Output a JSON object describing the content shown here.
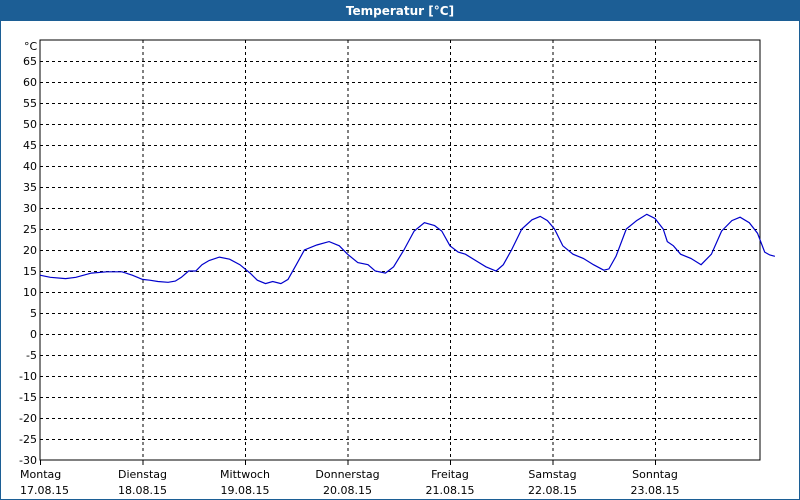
{
  "chart_data": {
    "type": "line",
    "title": "Temperatur [°C]",
    "ylabel": "°C",
    "ylim": [
      -30,
      70
    ],
    "yticks": [
      65,
      60,
      55,
      50,
      45,
      40,
      35,
      30,
      25,
      20,
      15,
      10,
      5,
      0,
      -5,
      -10,
      -15,
      -20,
      -25,
      -30
    ],
    "grid": true,
    "xlim_days": 7,
    "categories": [
      {
        "day": "Montag",
        "date": "17.08.15"
      },
      {
        "day": "Dienstag",
        "date": "18.08.15"
      },
      {
        "day": "Mittwoch",
        "date": "19.08.15"
      },
      {
        "day": "Donnerstag",
        "date": "20.08.15"
      },
      {
        "day": "Freitag",
        "date": "21.08.15"
      },
      {
        "day": "Samstag",
        "date": "22.08.15"
      },
      {
        "day": "Sonntag",
        "date": "23.08.15"
      }
    ],
    "series": [
      {
        "color": "#0000cc",
        "points": [
          [
            0.0,
            14.0
          ],
          [
            0.1,
            13.5
          ],
          [
            0.25,
            13.2
          ],
          [
            0.35,
            13.5
          ],
          [
            0.5,
            14.5
          ],
          [
            0.65,
            14.8
          ],
          [
            0.8,
            14.8
          ],
          [
            0.9,
            14.0
          ],
          [
            1.0,
            13.0
          ],
          [
            1.07,
            12.8
          ],
          [
            1.15,
            12.5
          ],
          [
            1.25,
            12.3
          ],
          [
            1.32,
            12.6
          ],
          [
            1.38,
            13.5
          ],
          [
            1.45,
            15.0
          ],
          [
            1.52,
            15.0
          ],
          [
            1.58,
            16.5
          ],
          [
            1.65,
            17.5
          ],
          [
            1.75,
            18.3
          ],
          [
            1.85,
            17.8
          ],
          [
            1.95,
            16.5
          ],
          [
            2.05,
            14.5
          ],
          [
            2.12,
            12.8
          ],
          [
            2.2,
            12.0
          ],
          [
            2.27,
            12.5
          ],
          [
            2.35,
            12.0
          ],
          [
            2.42,
            13.0
          ],
          [
            2.5,
            16.5
          ],
          [
            2.58,
            20.0
          ],
          [
            2.7,
            21.2
          ],
          [
            2.82,
            22.0
          ],
          [
            2.92,
            21.0
          ],
          [
            3.0,
            19.0
          ],
          [
            3.1,
            17.0
          ],
          [
            3.2,
            16.5
          ],
          [
            3.27,
            15.0
          ],
          [
            3.37,
            14.5
          ],
          [
            3.45,
            16.0
          ],
          [
            3.55,
            20.0
          ],
          [
            3.65,
            24.5
          ],
          [
            3.75,
            26.5
          ],
          [
            3.85,
            25.8
          ],
          [
            3.92,
            24.5
          ],
          [
            4.0,
            21.0
          ],
          [
            4.08,
            19.5
          ],
          [
            4.15,
            19.0
          ],
          [
            4.25,
            17.5
          ],
          [
            4.35,
            16.0
          ],
          [
            4.45,
            15.0
          ],
          [
            4.52,
            16.5
          ],
          [
            4.6,
            20.0
          ],
          [
            4.7,
            25.0
          ],
          [
            4.8,
            27.2
          ],
          [
            4.88,
            28.0
          ],
          [
            4.95,
            27.0
          ],
          [
            5.02,
            25.0
          ],
          [
            5.1,
            21.0
          ],
          [
            5.2,
            19.0
          ],
          [
            5.3,
            18.0
          ],
          [
            5.4,
            16.5
          ],
          [
            5.5,
            15.2
          ],
          [
            5.55,
            15.5
          ],
          [
            5.62,
            18.5
          ],
          [
            5.72,
            25.0
          ],
          [
            5.82,
            27.0
          ],
          [
            5.92,
            28.5
          ],
          [
            6.0,
            27.5
          ],
          [
            6.08,
            25.0
          ],
          [
            6.12,
            22.0
          ],
          [
            6.18,
            21.0
          ],
          [
            6.25,
            19.0
          ],
          [
            6.35,
            18.0
          ],
          [
            6.45,
            16.5
          ],
          [
            6.55,
            19.0
          ],
          [
            6.65,
            24.5
          ],
          [
            6.75,
            27.0
          ],
          [
            6.83,
            27.8
          ],
          [
            6.92,
            26.5
          ],
          [
            7.0,
            24.0
          ],
          [
            7.07,
            19.5
          ],
          [
            7.12,
            18.8
          ],
          [
            7.17,
            18.5
          ]
        ]
      }
    ]
  }
}
